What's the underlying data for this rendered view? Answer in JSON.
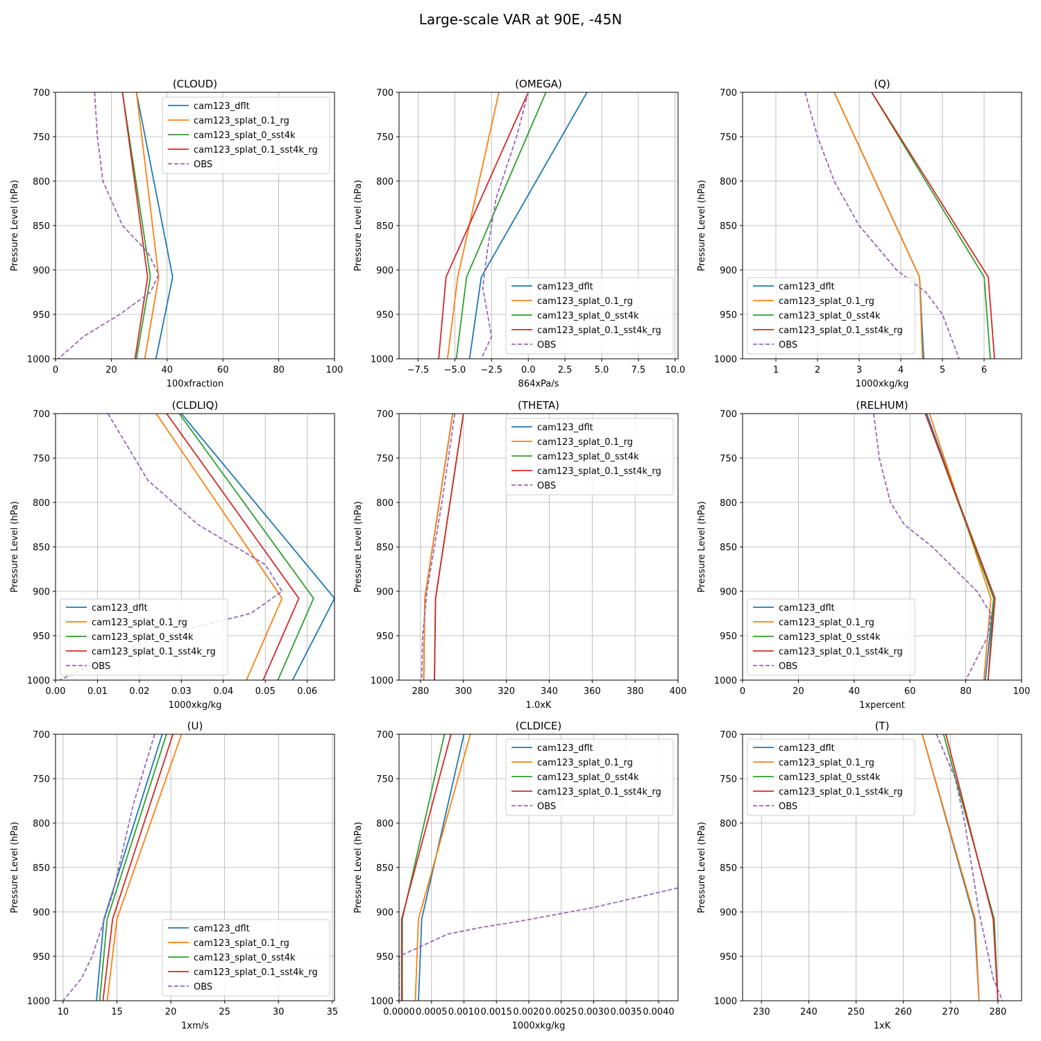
{
  "title": "Large-scale VAR at 90E, -45N",
  "ylabel": "Pressure Level (hPa)",
  "yticks": [
    700,
    750,
    800,
    850,
    900,
    950,
    1000
  ],
  "ylim": [
    1000,
    700
  ],
  "series_colors": {
    "cam123_dflt": "#1f77b4",
    "cam123_splat_0.1_rg": "#ff7f0e",
    "cam123_splat_0_sst4k": "#2ca02c",
    "cam123_splat_0.1_sst4k_rg": "#d62728",
    "OBS": "#9467bd"
  },
  "legend_labels": [
    "cam123_dflt",
    "cam123_splat_0.1_rg",
    "cam123_splat_0_sst4k",
    "cam123_splat_0.1_sst4k_rg",
    "OBS"
  ],
  "chart_data": [
    {
      "type": "line",
      "title": "(CLOUD)",
      "xlabel": "100xfraction",
      "xlim": [
        0,
        100
      ],
      "xticks": [
        0,
        20,
        40,
        60,
        80,
        100
      ],
      "xtick_labels": [
        "0",
        "20",
        "40",
        "60",
        "80",
        "100"
      ],
      "legend": "upper-right",
      "grid": true,
      "series": [
        {
          "name": "cam123_dflt",
          "x": [
            29,
            42,
            36
          ],
          "y": [
            700,
            908,
            1000
          ]
        },
        {
          "name": "cam123_splat_0.1_rg",
          "x": [
            29,
            37,
            32
          ],
          "y": [
            700,
            908,
            1000
          ]
        },
        {
          "name": "cam123_splat_0_sst4k",
          "x": [
            24,
            34,
            29
          ],
          "y": [
            700,
            908,
            1000
          ]
        },
        {
          "name": "cam123_splat_0.1_sst4k_rg",
          "x": [
            24,
            33,
            28.5
          ],
          "y": [
            700,
            908,
            1000
          ]
        },
        {
          "name": "OBS",
          "x": [
            14,
            15,
            17,
            24,
            33,
            37,
            34,
            23,
            10,
            1
          ],
          "y": [
            700,
            750,
            800,
            850,
            880,
            905,
            925,
            950,
            975,
            1000
          ]
        }
      ]
    },
    {
      "type": "line",
      "title": "(OMEGA)",
      "xlabel": "864xPa/s",
      "xlim": [
        -8.8,
        10.2
      ],
      "xticks": [
        -7.5,
        -5,
        -2.5,
        0,
        2.5,
        5,
        7.5,
        10
      ],
      "xtick_labels": [
        "−7.5",
        "−5.0",
        "−2.5",
        "0.0",
        "2.5",
        "5.0",
        "7.5",
        "10.0"
      ],
      "legend": "lower-right",
      "grid": true,
      "series": [
        {
          "name": "cam123_dflt",
          "x": [
            4.0,
            -3.2,
            -4.0
          ],
          "y": [
            700,
            908,
            1000
          ]
        },
        {
          "name": "cam123_splat_0.1_rg",
          "x": [
            -2.0,
            -4.8,
            -5.5
          ],
          "y": [
            700,
            908,
            1000
          ]
        },
        {
          "name": "cam123_splat_0_sst4k",
          "x": [
            1.2,
            -4.2,
            -4.9
          ],
          "y": [
            700,
            908,
            1000
          ]
        },
        {
          "name": "cam123_splat_0.1_sst4k_rg",
          "x": [
            0.0,
            -5.6,
            -6.1
          ],
          "y": [
            700,
            908,
            1000
          ]
        },
        {
          "name": "OBS",
          "x": [
            0.0,
            -0.8,
            -2.2,
            -2.8,
            -3.1,
            -2.5,
            -3.2
          ],
          "y": [
            700,
            750,
            820,
            880,
            920,
            975,
            1000
          ]
        }
      ]
    },
    {
      "type": "line",
      "title": "(Q)",
      "xlabel": "1000xkg/kg",
      "xlim": [
        0.2,
        6.9
      ],
      "xticks": [
        1,
        2,
        3,
        4,
        5,
        6
      ],
      "xtick_labels": [
        "1",
        "2",
        "3",
        "4",
        "5",
        "6"
      ],
      "legend": "lower-left",
      "grid": true,
      "series": [
        {
          "name": "cam123_dflt",
          "x": [
            2.4,
            4.45,
            4.55
          ],
          "y": [
            700,
            908,
            1000
          ]
        },
        {
          "name": "cam123_splat_0.1_rg",
          "x": [
            2.4,
            4.45,
            4.52
          ],
          "y": [
            700,
            908,
            1000
          ]
        },
        {
          "name": "cam123_splat_0_sst4k",
          "x": [
            3.3,
            6.0,
            6.15
          ],
          "y": [
            700,
            908,
            1000
          ]
        },
        {
          "name": "cam123_splat_0.1_sst4k_rg",
          "x": [
            3.3,
            6.1,
            6.25
          ],
          "y": [
            700,
            908,
            1000
          ]
        },
        {
          "name": "OBS",
          "x": [
            1.7,
            2.0,
            2.4,
            3.0,
            3.9,
            4.6,
            5.0,
            5.4
          ],
          "y": [
            700,
            750,
            800,
            850,
            900,
            925,
            950,
            1000
          ]
        }
      ]
    },
    {
      "type": "line",
      "title": "(CLDLIQ)",
      "xlabel": "1000xkg/kg",
      "xlim": [
        0,
        0.0665
      ],
      "xticks": [
        0,
        0.01,
        0.02,
        0.03,
        0.04,
        0.05,
        0.06
      ],
      "xtick_labels": [
        "0.00",
        "0.01",
        "0.02",
        "0.03",
        "0.04",
        "0.05",
        "0.06"
      ],
      "legend": "lower-left",
      "grid": true,
      "series": [
        {
          "name": "cam123_dflt",
          "x": [
            0.03,
            0.0665,
            0.0565
          ],
          "y": [
            700,
            908,
            1000
          ]
        },
        {
          "name": "cam123_splat_0.1_rg",
          "x": [
            0.024,
            0.054,
            0.0455
          ],
          "y": [
            700,
            908,
            1000
          ]
        },
        {
          "name": "cam123_splat_0_sst4k",
          "x": [
            0.0295,
            0.0615,
            0.053
          ],
          "y": [
            700,
            908,
            1000
          ]
        },
        {
          "name": "cam123_splat_0.1_sst4k_rg",
          "x": [
            0.0265,
            0.058,
            0.0495
          ],
          "y": [
            700,
            908,
            1000
          ]
        },
        {
          "name": "OBS",
          "x": [
            0.0125,
            0.022,
            0.034,
            0.05,
            0.054,
            0.0465,
            0.025,
            0.012,
            0.001
          ],
          "y": [
            700,
            775,
            825,
            870,
            900,
            925,
            950,
            975,
            1000
          ]
        }
      ]
    },
    {
      "type": "line",
      "title": "(THETA)",
      "xlabel": "1.0xK",
      "xlim": [
        270,
        400
      ],
      "xticks": [
        280,
        300,
        320,
        340,
        360,
        380,
        400
      ],
      "xtick_labels": [
        "280",
        "300",
        "320",
        "340",
        "360",
        "380",
        "400"
      ],
      "legend": "upper-right",
      "grid": true,
      "series": [
        {
          "name": "cam123_dflt",
          "x": [
            295,
            282,
            281.5
          ],
          "y": [
            700,
            908,
            1000
          ]
        },
        {
          "name": "cam123_splat_0.1_rg",
          "x": [
            295,
            282,
            281.5
          ],
          "y": [
            700,
            908,
            1000
          ]
        },
        {
          "name": "cam123_splat_0_sst4k",
          "x": [
            300,
            287,
            286.5
          ],
          "y": [
            700,
            908,
            1000
          ]
        },
        {
          "name": "cam123_splat_0.1_sst4k_rg",
          "x": [
            300,
            287,
            286.5
          ],
          "y": [
            700,
            908,
            1000
          ]
        },
        {
          "name": "OBS",
          "x": [
            296,
            290,
            283,
            281,
            280.5
          ],
          "y": [
            700,
            800,
            900,
            950,
            1000
          ]
        }
      ]
    },
    {
      "type": "line",
      "title": "(RELHUM)",
      "xlabel": "1xpercent",
      "xlim": [
        0,
        100
      ],
      "xticks": [
        0,
        20,
        40,
        60,
        80,
        100
      ],
      "xtick_labels": [
        "0",
        "20",
        "40",
        "60",
        "80",
        "100"
      ],
      "legend": "lower-left",
      "grid": true,
      "series": [
        {
          "name": "cam123_dflt",
          "x": [
            66,
            90,
            87
          ],
          "y": [
            700,
            908,
            1000
          ]
        },
        {
          "name": "cam123_splat_0.1_rg",
          "x": [
            67,
            89,
            86.5
          ],
          "y": [
            700,
            908,
            1000
          ]
        },
        {
          "name": "cam123_splat_0_sst4k",
          "x": [
            65.5,
            90,
            88
          ],
          "y": [
            700,
            908,
            1000
          ]
        },
        {
          "name": "cam123_splat_0.1_sst4k_rg",
          "x": [
            65.5,
            90.5,
            88
          ],
          "y": [
            700,
            908,
            1000
          ]
        },
        {
          "name": "OBS",
          "x": [
            47,
            49,
            53,
            58,
            68,
            84,
            89,
            88,
            80
          ],
          "y": [
            700,
            750,
            800,
            825,
            850,
            900,
            925,
            950,
            1000
          ]
        }
      ]
    },
    {
      "type": "line",
      "title": "(U)",
      "xlabel": "1xm/s",
      "xlim": [
        9.3,
        35.2
      ],
      "xticks": [
        10,
        15,
        20,
        25,
        30,
        35
      ],
      "xtick_labels": [
        "10",
        "15",
        "20",
        "25",
        "30",
        "35"
      ],
      "legend": "lower-right",
      "grid": true,
      "series": [
        {
          "name": "cam123_dflt",
          "x": [
            19.2,
            13.8,
            13.1
          ],
          "y": [
            700,
            908,
            1000
          ]
        },
        {
          "name": "cam123_splat_0.1_rg",
          "x": [
            21.0,
            15.0,
            14.1
          ],
          "y": [
            700,
            908,
            1000
          ]
        },
        {
          "name": "cam123_splat_0_sst4k",
          "x": [
            19.6,
            14.1,
            13.4
          ],
          "y": [
            700,
            908,
            1000
          ]
        },
        {
          "name": "cam123_splat_0.1_sst4k_rg",
          "x": [
            20.2,
            14.6,
            13.7
          ],
          "y": [
            700,
            908,
            1000
          ]
        },
        {
          "name": "OBS",
          "x": [
            18.5,
            16.5,
            14.6,
            12.7,
            11.7,
            10.0
          ],
          "y": [
            700,
            780,
            880,
            950,
            975,
            1000
          ]
        }
      ]
    },
    {
      "type": "line",
      "title": "(CLDICE)",
      "xlabel": "1000xkg/kg",
      "xlim": [
        0,
        0.0043
      ],
      "xticks": [
        0,
        0.0005,
        0.001,
        0.0015,
        0.002,
        0.0025,
        0.003,
        0.0035,
        0.004
      ],
      "xtick_labels": [
        "0.0000",
        "0.0005",
        "0.0010",
        "0.0015",
        "0.0020",
        "0.0025",
        "0.0030",
        "0.0035",
        "0.0040"
      ],
      "legend": "upper-right",
      "grid": true,
      "series": [
        {
          "name": "cam123_dflt",
          "x": [
            0.001,
            0.00035,
            0.0003
          ],
          "y": [
            700,
            908,
            1000
          ]
        },
        {
          "name": "cam123_splat_0.1_rg",
          "x": [
            0.0011,
            0.0003,
            0.00025
          ],
          "y": [
            700,
            908,
            1000
          ]
        },
        {
          "name": "cam123_splat_0_sst4k",
          "x": [
            0.0007,
            5e-05,
            5e-05
          ],
          "y": [
            700,
            908,
            1000
          ]
        },
        {
          "name": "cam123_splat_0.1_sst4k_rg",
          "x": [
            0.0008,
            4e-05,
            4e-05
          ],
          "y": [
            700,
            908,
            1000
          ]
        },
        {
          "name": "OBS",
          "x": [
            0.0043,
            0.003,
            0.0019,
            0.0013,
            0.00075,
            0.0003,
            0.0,
            0.0
          ],
          "y": [
            873,
            895,
            910,
            917,
            925,
            940,
            950,
            1000
          ]
        }
      ]
    },
    {
      "type": "line",
      "title": "(T)",
      "xlabel": "1xK",
      "xlim": [
        226,
        285
      ],
      "xticks": [
        230,
        240,
        250,
        260,
        270,
        280
      ],
      "xtick_labels": [
        "230",
        "240",
        "250",
        "260",
        "270",
        "280"
      ],
      "legend": "upper-left",
      "grid": true,
      "series": [
        {
          "name": "cam123_dflt",
          "x": [
            264,
            275,
            276
          ],
          "y": [
            700,
            908,
            1000
          ]
        },
        {
          "name": "cam123_splat_0.1_rg",
          "x": [
            264,
            275.2,
            276
          ],
          "y": [
            700,
            908,
            1000
          ]
        },
        {
          "name": "cam123_splat_0_sst4k",
          "x": [
            268.5,
            279.2,
            280
          ],
          "y": [
            700,
            908,
            1000
          ]
        },
        {
          "name": "cam123_splat_0.1_sst4k_rg",
          "x": [
            269,
            279,
            280
          ],
          "y": [
            700,
            908,
            1000
          ]
        },
        {
          "name": "OBS",
          "x": [
            267,
            271,
            273,
            276,
            279,
            281
          ],
          "y": [
            700,
            750,
            800,
            900,
            975,
            1000
          ]
        }
      ]
    }
  ]
}
